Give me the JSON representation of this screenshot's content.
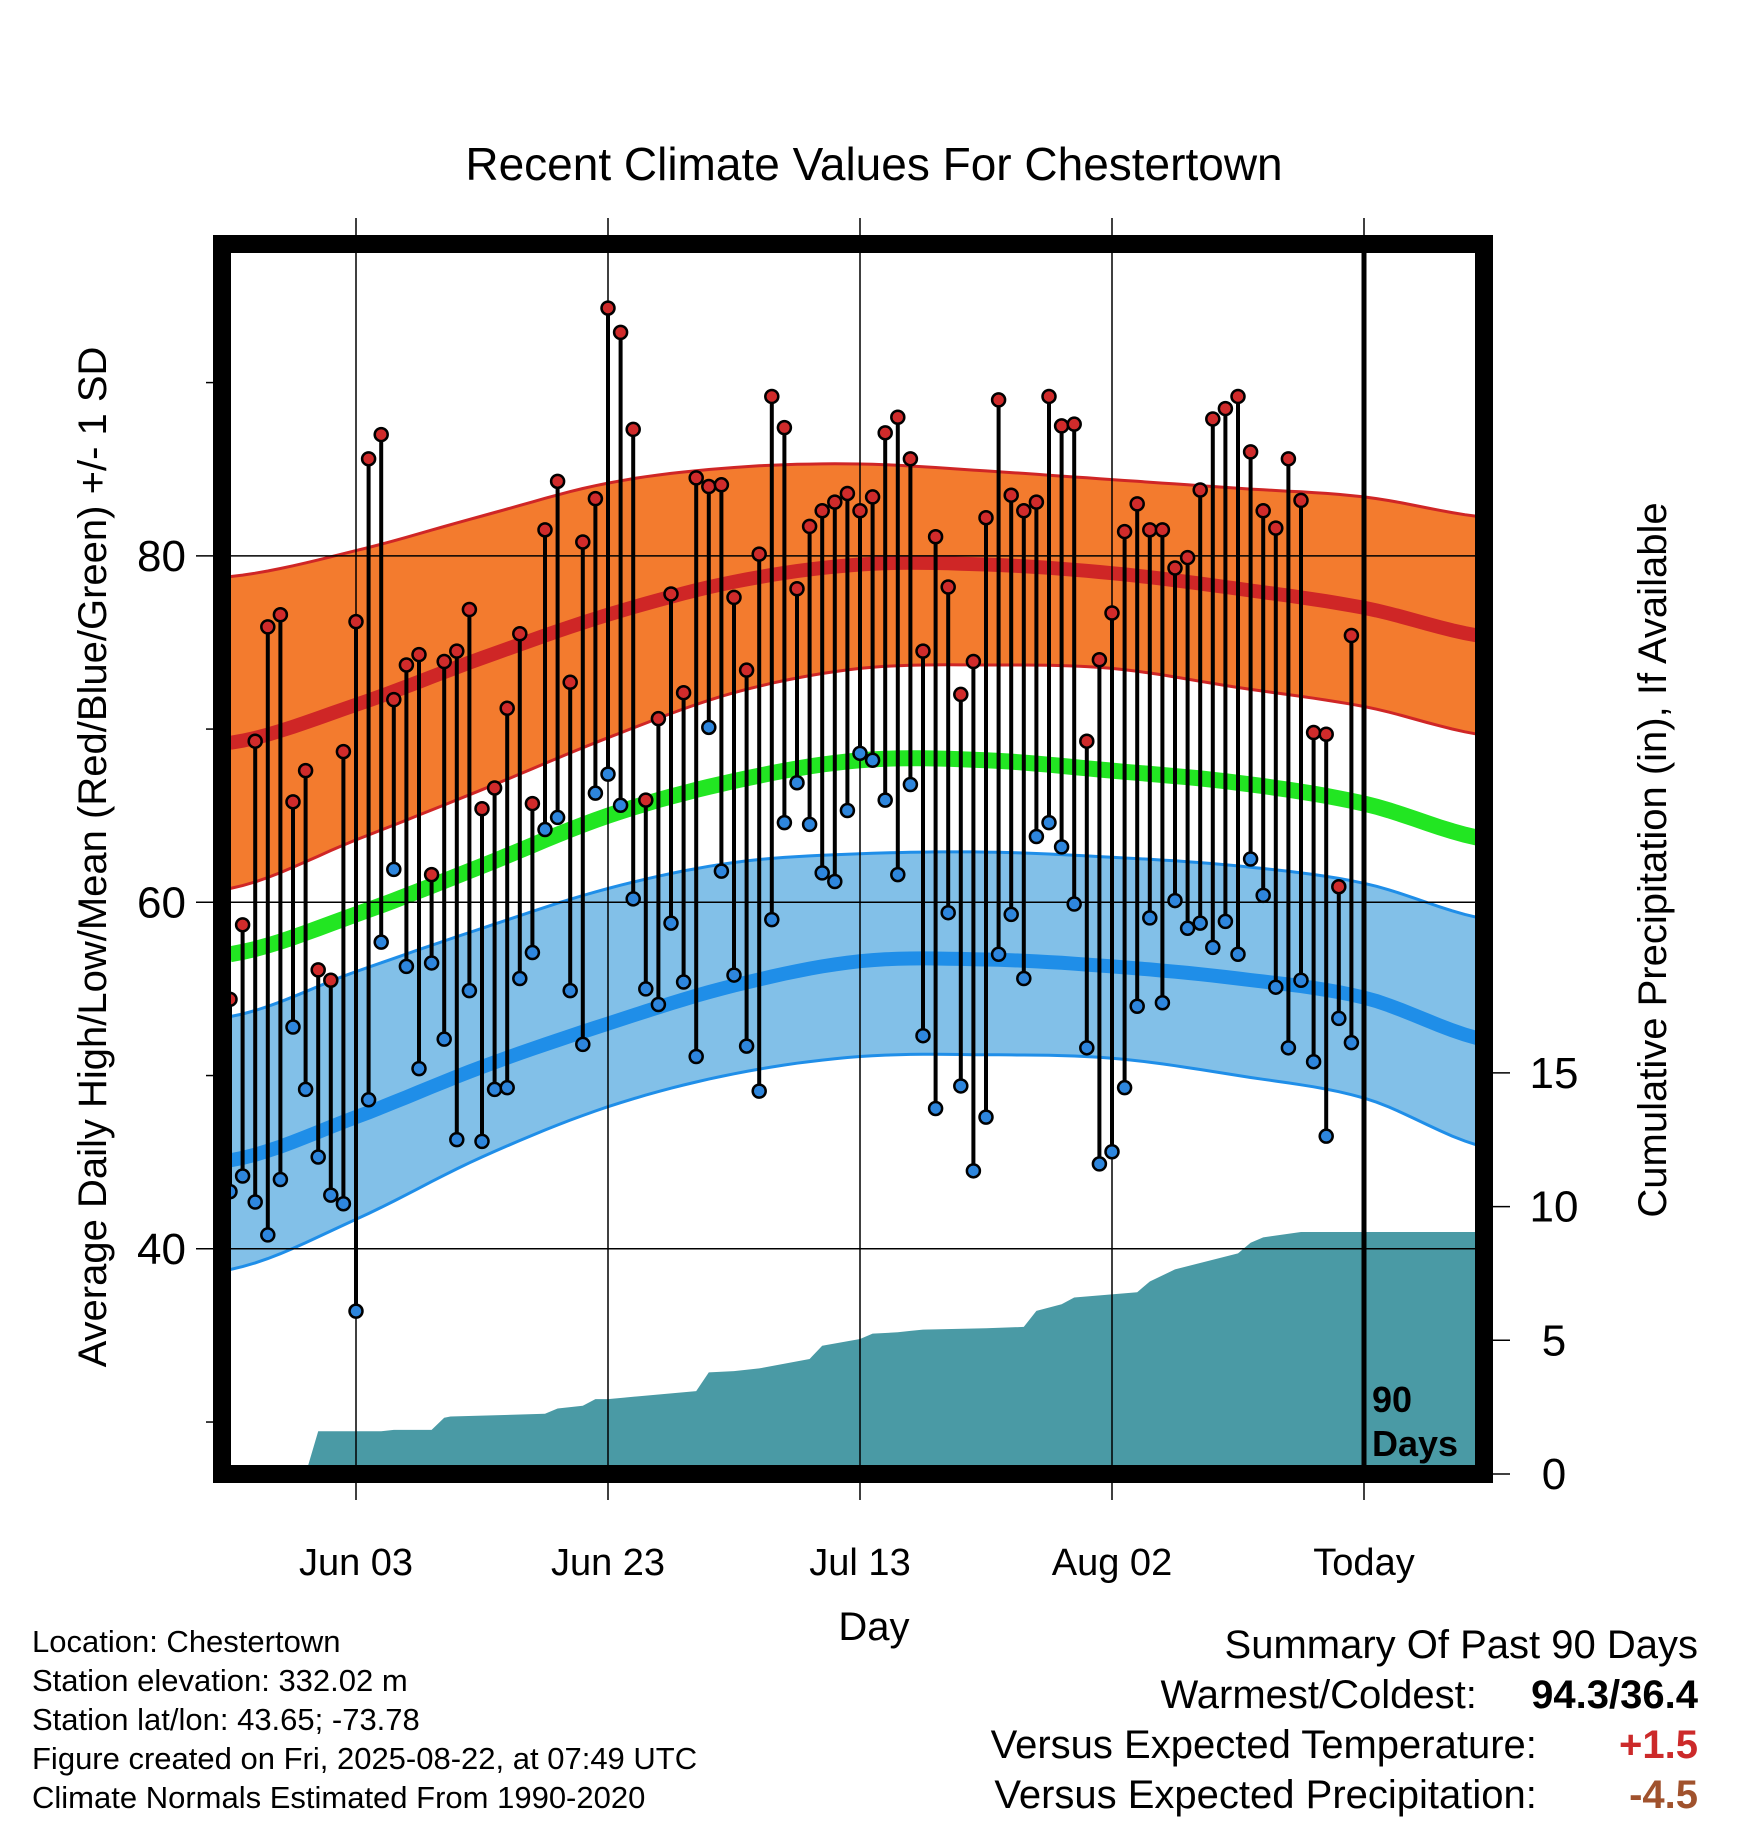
{
  "chart_data": {
    "type": "line",
    "title": "Recent Climate Values For Chestertown",
    "xlabel": "Day",
    "ylabel": "Average Daily High/Low/Mean (Red/Blue/Green) +/- 1 SD",
    "y2label": "Cumulative Precipitation (in), If Available",
    "x_tick_labels": [
      "Jun 03",
      "Jun 23",
      "Jul 13",
      "Aug 02",
      "Today"
    ],
    "today_label": "90 Days",
    "ylim": [
      27,
      98
    ],
    "yticks": [
      40,
      60,
      80
    ],
    "y2lim": [
      0,
      46
    ],
    "y2ticks": [
      0,
      5,
      10,
      15
    ],
    "x_day_range": [
      0,
      100
    ],
    "today_day": 90,
    "tick_days": [
      10,
      30,
      50,
      70,
      90
    ],
    "grid": true,
    "colors": {
      "high_band": "#f37b2e",
      "high_line": "#cf2626",
      "mean_line": "#22e622",
      "low_band": "#82c0e8",
      "low_line": "#1f8ee8",
      "precip": "#4a9aa5",
      "high_marker": "#d02b2b",
      "low_marker": "#2e86dd"
    },
    "normals": {
      "days": [
        0,
        10,
        20,
        30,
        40,
        50,
        60,
        70,
        80,
        90,
        100
      ],
      "high_mean": [
        69.2,
        71.4,
        74.1,
        76.6,
        78.5,
        79.5,
        79.5,
        79.0,
        78.1,
        77.0,
        75.3
      ],
      "high_sd_upper": [
        78.8,
        80.3,
        82.3,
        84.2,
        85.1,
        85.3,
        84.9,
        84.4,
        83.9,
        83.4,
        82.2
      ],
      "high_sd_lower": [
        60.8,
        63.6,
        66.5,
        69.5,
        72.1,
        73.5,
        73.7,
        73.5,
        72.4,
        71.3,
        69.6
      ],
      "mean": [
        57.0,
        59.3,
        62.1,
        65.0,
        67.0,
        68.2,
        68.2,
        67.6,
        66.9,
        65.7,
        63.6
      ],
      "low_mean": [
        45.1,
        47.6,
        50.5,
        53.0,
        55.2,
        56.6,
        56.7,
        56.3,
        55.6,
        54.5,
        52.0
      ],
      "low_sd_upper": [
        53.4,
        56.0,
        58.5,
        60.8,
        62.3,
        62.8,
        62.9,
        62.6,
        62.1,
        61.1,
        59.0
      ],
      "low_sd_lower": [
        38.8,
        41.7,
        45.3,
        48.2,
        50.1,
        51.1,
        51.2,
        51.0,
        50.0,
        48.7,
        45.8
      ]
    },
    "series": [
      {
        "name": "High",
        "values": [
          54.4,
          58.7,
          69.3,
          75.9,
          76.6,
          65.8,
          67.6,
          56.1,
          55.5,
          68.7,
          76.2,
          85.6,
          87.0,
          71.7,
          73.7,
          74.3,
          61.6,
          73.9,
          74.5,
          76.9,
          65.4,
          66.6,
          71.2,
          75.5,
          65.7,
          81.5,
          84.3,
          72.7,
          80.8,
          83.3,
          94.3,
          92.9,
          87.3,
          65.9,
          70.6,
          77.8,
          72.1,
          84.5,
          84.0,
          84.1,
          77.6,
          73.4,
          80.1,
          89.2,
          87.4,
          78.1,
          81.7,
          82.6,
          83.1,
          83.6,
          82.6,
          83.4,
          87.1,
          88.0,
          85.6,
          74.5,
          81.1,
          78.2,
          72.0,
          73.9,
          82.2,
          89.0,
          83.5,
          82.6,
          83.1,
          89.2,
          87.5,
          87.6,
          69.3,
          74.0,
          76.7,
          81.4,
          83.0,
          81.5,
          81.5,
          79.3,
          79.9,
          83.8,
          87.9,
          88.5,
          89.2,
          86.0,
          82.6,
          81.6,
          85.6,
          83.2,
          69.8,
          69.7,
          60.9,
          75.4
        ]
      },
      {
        "name": "Low",
        "values": [
          43.3,
          44.2,
          42.7,
          40.8,
          44.0,
          52.8,
          49.2,
          45.3,
          43.1,
          42.6,
          36.4,
          48.6,
          57.7,
          61.9,
          56.3,
          50.4,
          56.5,
          52.1,
          46.3,
          54.9,
          46.2,
          49.2,
          49.3,
          55.6,
          57.1,
          64.2,
          64.9,
          54.9,
          51.8,
          66.3,
          67.4,
          65.6,
          60.2,
          55.0,
          54.1,
          58.8,
          55.4,
          51.1,
          70.1,
          61.8,
          55.8,
          51.7,
          49.1,
          59.0,
          64.6,
          66.9,
          64.5,
          61.7,
          61.2,
          65.3,
          68.6,
          68.2,
          65.9,
          61.6,
          66.8,
          52.3,
          48.1,
          59.4,
          49.4,
          44.5,
          47.6,
          57.0,
          59.3,
          55.6,
          63.8,
          64.6,
          63.2,
          59.9,
          51.6,
          44.9,
          45.6,
          49.3,
          54.0,
          59.1,
          54.2,
          60.1,
          58.5,
          58.8,
          57.4,
          58.9,
          57.0,
          62.5,
          60.4,
          55.1,
          51.6,
          55.5,
          50.8,
          46.5,
          53.3,
          51.9
        ]
      }
    ],
    "precip_cumulative": {
      "days": [
        0,
        6,
        7,
        10,
        12,
        13,
        16,
        17,
        17.5,
        25,
        26,
        28,
        29,
        30,
        37,
        38,
        40,
        42,
        46,
        47,
        50,
        51,
        53,
        54,
        55,
        60,
        63,
        64,
        66,
        67,
        72,
        73,
        75,
        80,
        81,
        82,
        85,
        86,
        89,
        90,
        99.8
      ],
      "values": [
        0,
        0,
        1.6,
        1.6,
        1.6,
        1.65,
        1.65,
        2.1,
        2.15,
        2.25,
        2.45,
        2.55,
        2.8,
        2.8,
        3.1,
        3.8,
        3.85,
        3.95,
        4.3,
        4.8,
        5.05,
        5.25,
        5.3,
        5.35,
        5.4,
        5.45,
        5.5,
        6.1,
        6.35,
        6.6,
        6.8,
        7.2,
        7.65,
        8.25,
        8.65,
        8.85,
        9.05,
        9.05,
        9.05,
        9.05,
        9.05
      ]
    }
  },
  "info": {
    "location": "Location: Chestertown",
    "elevation": "Station elevation: 332.02 m",
    "latlon": "Station lat/lon: 43.65; -73.78",
    "created": "Figure created on Fri, 2025-08-22, at 07:49 UTC",
    "normals": "Climate Normals Estimated From 1990-2020"
  },
  "summary": {
    "heading": "Summary Of Past 90 Days",
    "warmest_label": "Warmest/Coldest:",
    "warmest_value": "94.3/36.4",
    "temp_label": "Versus Expected Temperature:",
    "temp_value": "+1.5",
    "temp_color": "#cc2a2a",
    "precip_label": "Versus Expected Precipitation:",
    "precip_value": "-4.5",
    "precip_color": "#a0522d"
  }
}
